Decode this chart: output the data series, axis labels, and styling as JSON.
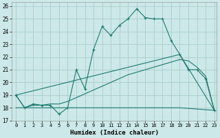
{
  "xlabel": "Humidex (Indice chaleur)",
  "bg_color": "#cce8e8",
  "grid_color": "#aacccc",
  "line_color": "#1a7a6e",
  "x_min": -0.5,
  "x_max": 23.3,
  "y_min": 17,
  "y_max": 26.3,
  "line1_x": [
    0,
    1,
    2,
    3,
    4,
    5,
    6,
    7,
    8,
    9,
    10,
    11,
    12,
    13,
    14,
    15,
    16,
    17,
    18,
    19,
    20,
    21,
    22,
    23
  ],
  "line1_y": [
    19,
    18,
    18.3,
    18.2,
    18.2,
    17.5,
    18.0,
    21.0,
    19.5,
    22.6,
    24.4,
    23.7,
    24.5,
    25.0,
    25.8,
    25.1,
    25.0,
    25.0,
    23.3,
    22.2,
    21.0,
    21.0,
    20.3,
    17.8
  ],
  "line2_x": [
    0,
    1,
    2,
    3,
    4,
    5,
    6,
    7,
    8,
    9,
    10,
    11,
    12,
    13,
    14,
    15,
    16,
    17,
    18,
    19,
    20,
    21,
    22,
    23
  ],
  "line2_y": [
    19.0,
    18.0,
    18.2,
    18.2,
    18.3,
    18.3,
    18.5,
    18.8,
    19.1,
    19.4,
    19.7,
    20.0,
    20.3,
    20.6,
    20.8,
    21.0,
    21.2,
    21.4,
    21.6,
    21.8,
    21.7,
    21.2,
    20.5,
    17.8
  ],
  "line3_x": [
    0,
    19,
    23
  ],
  "line3_y": [
    19.0,
    22.2,
    17.8
  ],
  "line4_x": [
    0,
    19,
    23
  ],
  "line4_y": [
    18.0,
    18.0,
    17.8
  ],
  "yticks": [
    17,
    18,
    19,
    20,
    21,
    22,
    23,
    24,
    25,
    26
  ],
  "xticks": [
    0,
    1,
    2,
    3,
    4,
    5,
    6,
    7,
    8,
    9,
    10,
    11,
    12,
    13,
    14,
    15,
    16,
    17,
    18,
    19,
    20,
    21,
    22,
    23
  ]
}
